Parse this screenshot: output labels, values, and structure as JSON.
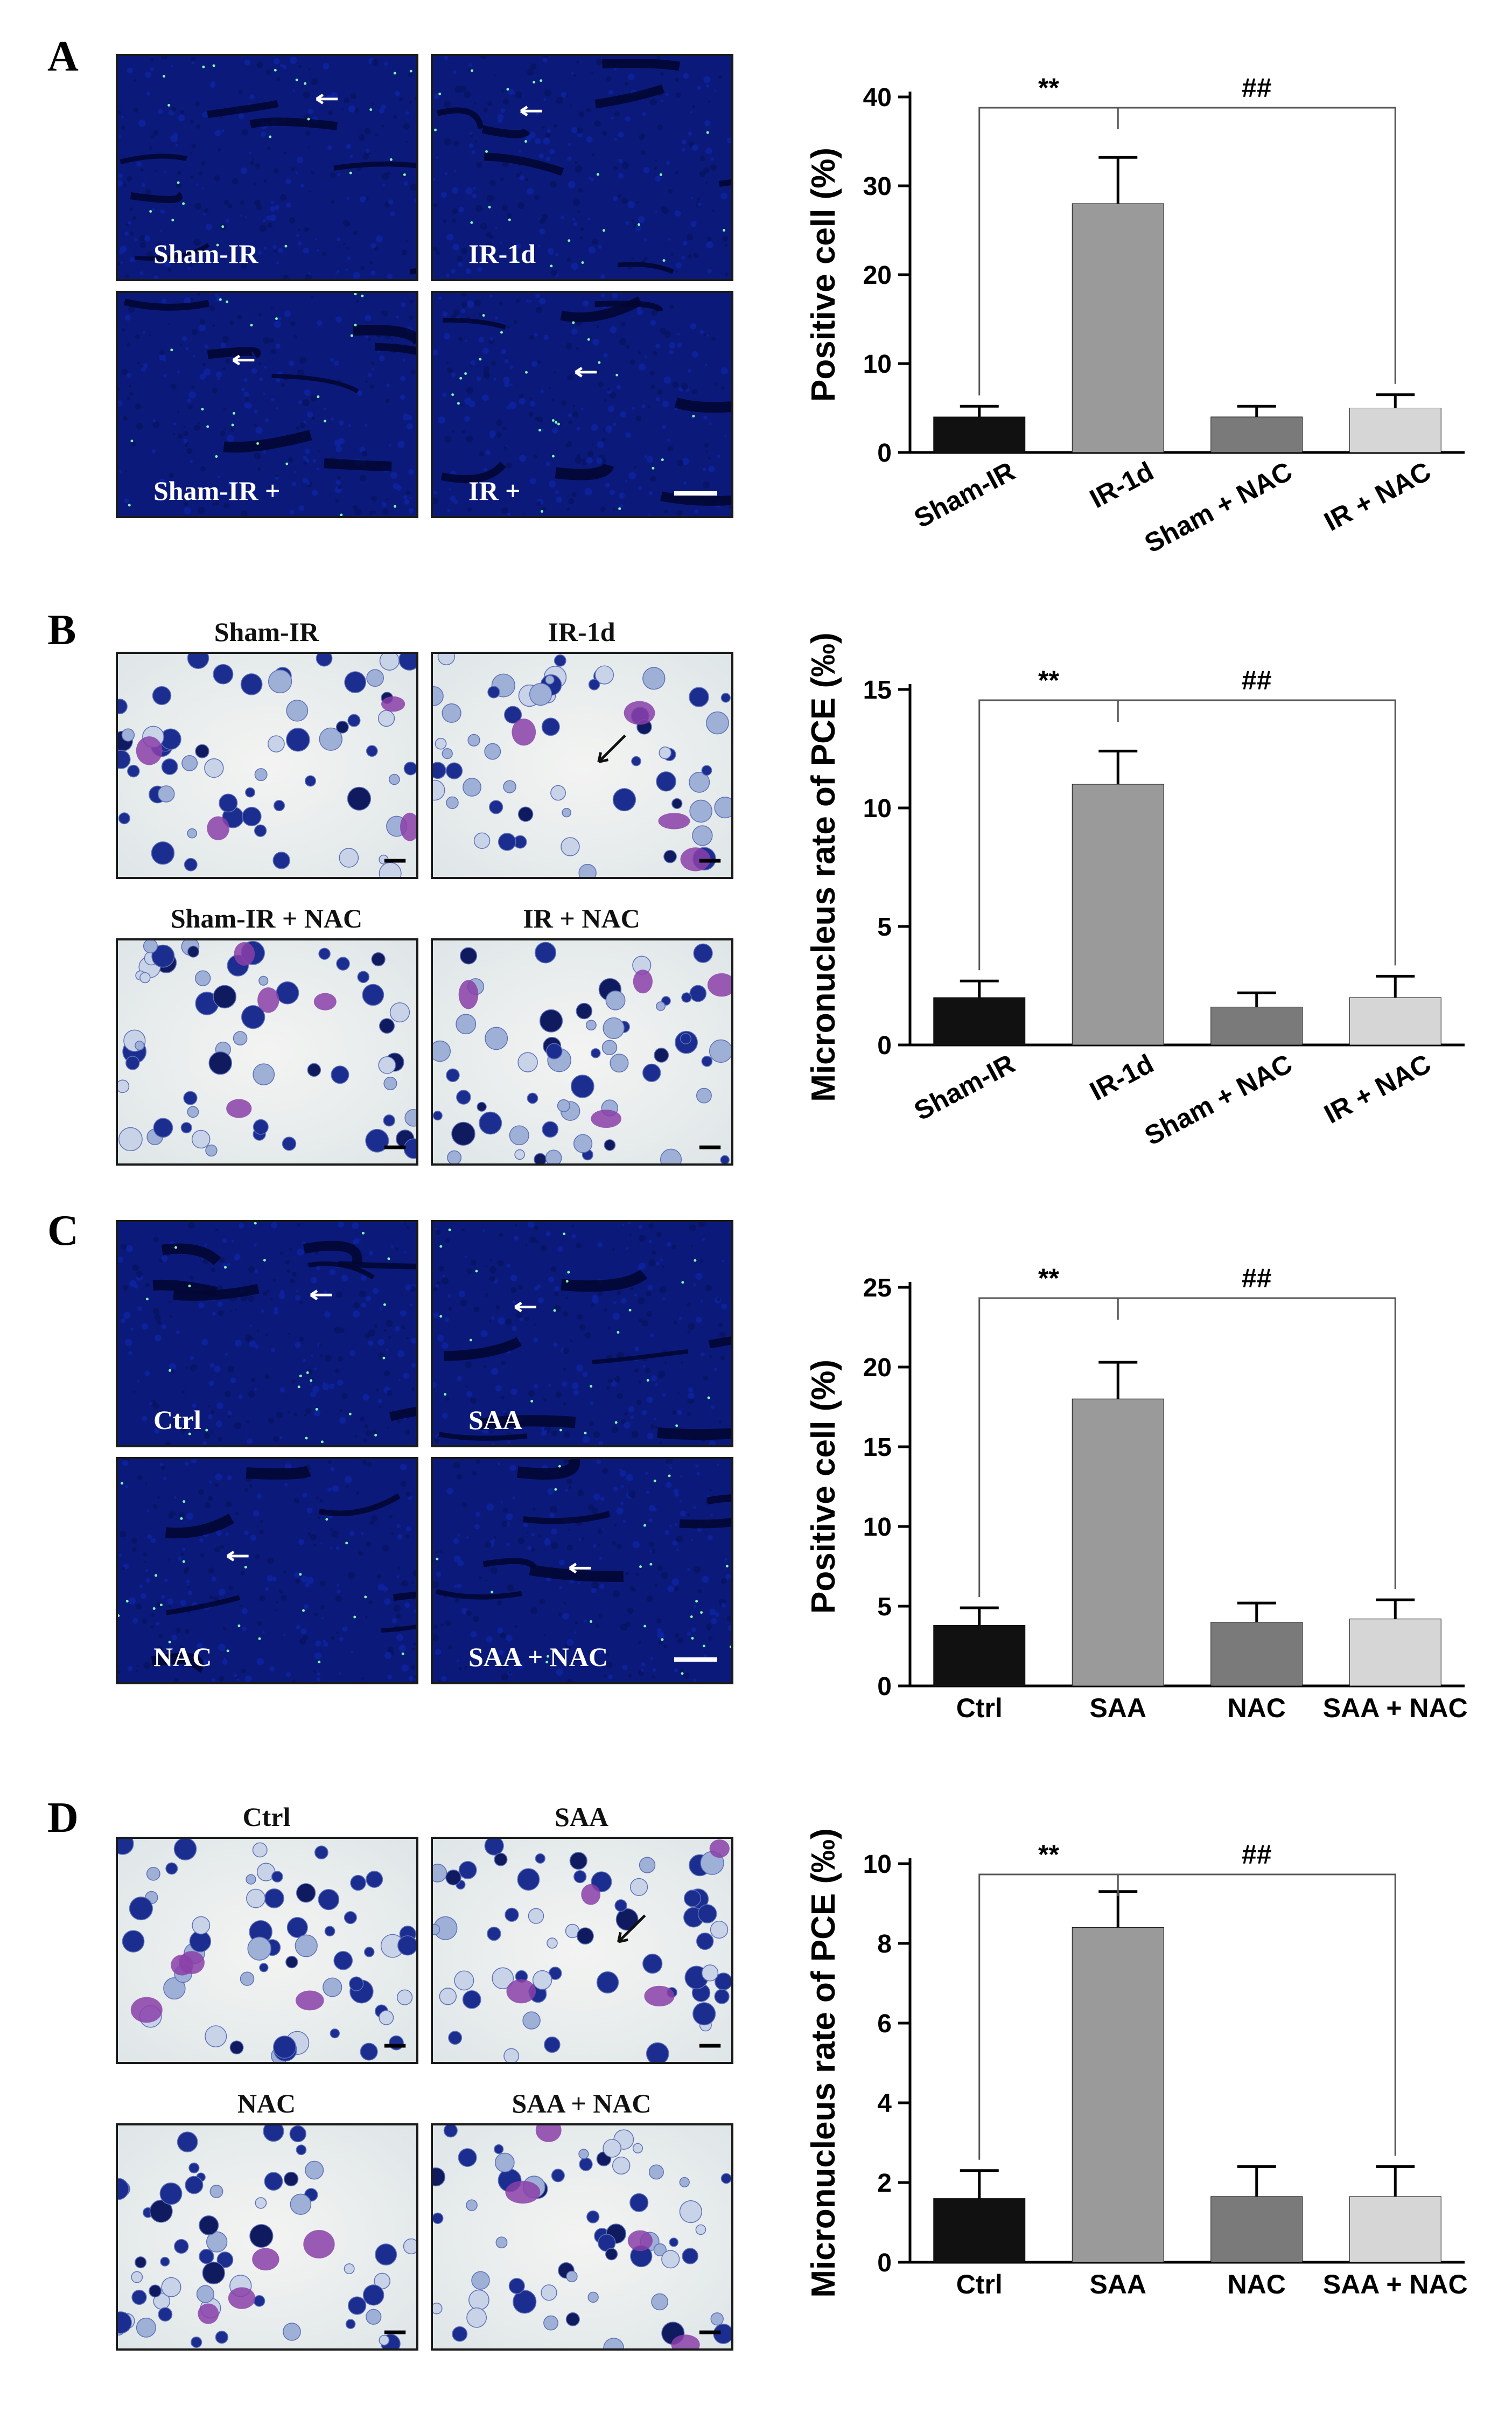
{
  "panels": [
    {
      "letter": "A",
      "images": [
        {
          "label": "Sham-IR",
          "style": "fluor"
        },
        {
          "label": "IR-1d",
          "style": "fluor"
        },
        {
          "label": "Sham-IR +",
          "style": "fluor"
        },
        {
          "label": "IR +",
          "style": "fluor"
        }
      ],
      "titles_above": false
    },
    {
      "letter": "B",
      "images": [
        {
          "label": "Sham-IR",
          "style": "smear"
        },
        {
          "label": "IR-1d",
          "style": "smear"
        },
        {
          "label": "Sham-IR + NAC",
          "style": "smear"
        },
        {
          "label": "IR + NAC",
          "style": "smear"
        }
      ],
      "titles_above": true
    },
    {
      "letter": "C",
      "images": [
        {
          "label": "Ctrl",
          "style": "fluor"
        },
        {
          "label": "SAA",
          "style": "fluor"
        },
        {
          "label": "NAC",
          "style": "fluor"
        },
        {
          "label": "SAA + NAC",
          "style": "fluor"
        }
      ],
      "titles_above": false
    },
    {
      "letter": "D",
      "images": [
        {
          "label": "Ctrl",
          "style": "smear"
        },
        {
          "label": "SAA",
          "style": "smear"
        },
        {
          "label": "NAC",
          "style": "smear"
        },
        {
          "label": "SAA + NAC",
          "style": "smear"
        }
      ],
      "titles_above": true
    }
  ],
  "chart_data": [
    {
      "type": "bar",
      "categories": [
        "Sham-IR",
        "IR-1d",
        "Sham + NAC",
        "IR + NAC"
      ],
      "values": [
        4,
        28,
        4,
        5
      ],
      "errors": [
        1.2,
        5.2,
        1.2,
        1.5
      ],
      "colors": [
        "#111111",
        "#9a9a9a",
        "#7a7a7a",
        "#d6d6d6"
      ],
      "ylabel": "Positive cell (%)",
      "ylim": [
        0,
        40
      ],
      "yticks": [
        0,
        10,
        20,
        30,
        40
      ],
      "rotate_labels": true,
      "sig": [
        {
          "text": "**",
          "from": 0,
          "to": 1
        },
        {
          "text": "##",
          "from": 1,
          "to": 3
        }
      ]
    },
    {
      "type": "bar",
      "categories": [
        "Sham-IR",
        "IR-1d",
        "Sham + NAC",
        "IR + NAC"
      ],
      "values": [
        2,
        11,
        1.6,
        2
      ],
      "errors": [
        0.7,
        1.4,
        0.6,
        0.9
      ],
      "colors": [
        "#111111",
        "#9a9a9a",
        "#7a7a7a",
        "#d6d6d6"
      ],
      "ylabel": "Micronucleus rate of PCE (‰)",
      "ylim": [
        0,
        15
      ],
      "yticks": [
        0,
        5,
        10,
        15
      ],
      "rotate_labels": true,
      "sig": [
        {
          "text": "**",
          "from": 0,
          "to": 1
        },
        {
          "text": "##",
          "from": 1,
          "to": 3
        }
      ]
    },
    {
      "type": "bar",
      "categories": [
        "Ctrl",
        "SAA",
        "NAC",
        "SAA + NAC"
      ],
      "values": [
        3.8,
        18,
        4,
        4.2
      ],
      "errors": [
        1.1,
        2.3,
        1.2,
        1.2
      ],
      "colors": [
        "#111111",
        "#9a9a9a",
        "#7a7a7a",
        "#d6d6d6"
      ],
      "ylabel": "Positive cell (%)",
      "ylim": [
        0,
        25
      ],
      "yticks": [
        0,
        5,
        10,
        15,
        20,
        25
      ],
      "rotate_labels": false,
      "sig": [
        {
          "text": "**",
          "from": 0,
          "to": 1
        },
        {
          "text": "##",
          "from": 1,
          "to": 3
        }
      ]
    },
    {
      "type": "bar",
      "categories": [
        "Ctrl",
        "SAA",
        "NAC",
        "SAA + NAC"
      ],
      "values": [
        1.6,
        8.4,
        1.65,
        1.65
      ],
      "errors": [
        0.7,
        0.9,
        0.75,
        0.75
      ],
      "colors": [
        "#111111",
        "#9a9a9a",
        "#7a7a7a",
        "#d6d6d6"
      ],
      "ylabel": "Micronucleus rate of PCE (‰)",
      "ylim": [
        0,
        10
      ],
      "yticks": [
        0,
        2,
        4,
        6,
        8,
        10
      ],
      "rotate_labels": false,
      "sig": [
        {
          "text": "**",
          "from": 0,
          "to": 1
        },
        {
          "text": "##",
          "from": 1,
          "to": 3
        }
      ]
    }
  ]
}
